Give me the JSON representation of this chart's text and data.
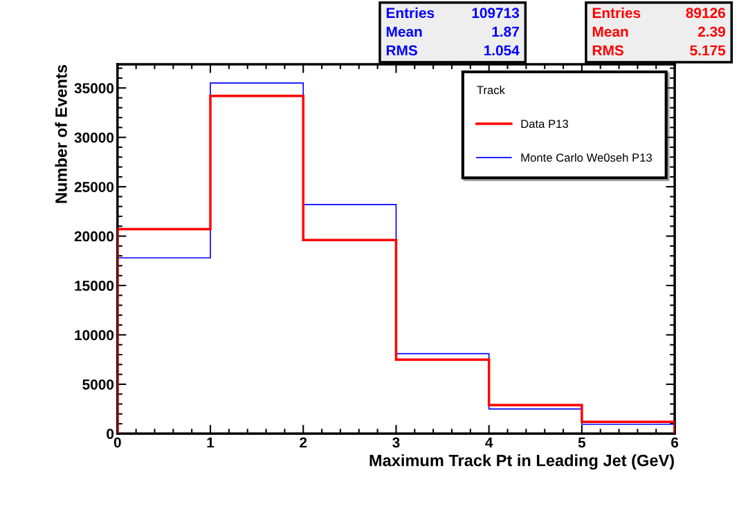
{
  "chart_data": {
    "type": "histogram",
    "xlabel": "Maximum Track Pt in Leading Jet (GeV)",
    "ylabel": "Number of Events",
    "legend_title": "Track",
    "bins": [
      0,
      1,
      2,
      3,
      4,
      5,
      6
    ],
    "series": [
      {
        "name": "Data P13",
        "color": "#ff0000",
        "values": [
          20700,
          34200,
          19600,
          7500,
          2900,
          1200
        ]
      },
      {
        "name": "Monte Carlo We0seh P13",
        "color": "#0000ff",
        "values": [
          17800,
          35500,
          23200,
          8100,
          2500,
          950
        ]
      }
    ],
    "annotations": [
      "Entries",
      "109713",
      "Mean",
      "1.87",
      "RMS",
      "1.054",
      "Entries",
      "89126",
      "Mean",
      "2.39",
      "RMS",
      "5.175"
    ],
    "xlim": [
      0,
      6
    ],
    "ylim": [
      0,
      37400
    ],
    "xticks": [
      0,
      1,
      2,
      3,
      4,
      5,
      6
    ],
    "yticks": [
      0,
      5000,
      10000,
      15000,
      20000,
      25000,
      30000,
      35000
    ],
    "legend": "top right",
    "grid": false
  }
}
